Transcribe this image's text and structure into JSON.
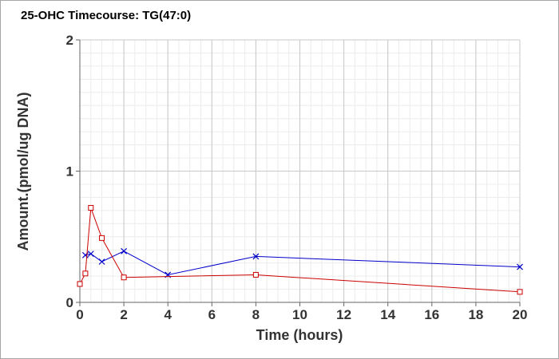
{
  "chart_data": {
    "type": "line",
    "title": "25-OHC Timecourse: TG(47:0)",
    "xlabel": "Time (hours)",
    "ylabel": "Amount.(pmol/ug DNA)",
    "xlim": [
      0,
      20
    ],
    "ylim": [
      0,
      2
    ],
    "x_ticks": [
      "0",
      "2",
      "4",
      "6",
      "8",
      "10",
      "12",
      "14",
      "16",
      "18",
      "20"
    ],
    "y_ticks": [
      "0",
      "1",
      "2"
    ],
    "grid": true,
    "legend": "none",
    "series": [
      {
        "color": "#0000cc",
        "marker": "x",
        "x": [
          0.25,
          0.5,
          1,
          2,
          4,
          8,
          20
        ],
        "y": [
          0.36,
          0.37,
          0.31,
          0.39,
          0.21,
          0.35,
          0.27
        ]
      },
      {
        "color": "#cc0000",
        "marker": "square",
        "x": [
          0,
          0.25,
          0.5,
          1,
          2,
          8,
          20
        ],
        "y": [
          0.14,
          0.22,
          0.72,
          0.49,
          0.19,
          0.21,
          0.08
        ]
      }
    ]
  }
}
